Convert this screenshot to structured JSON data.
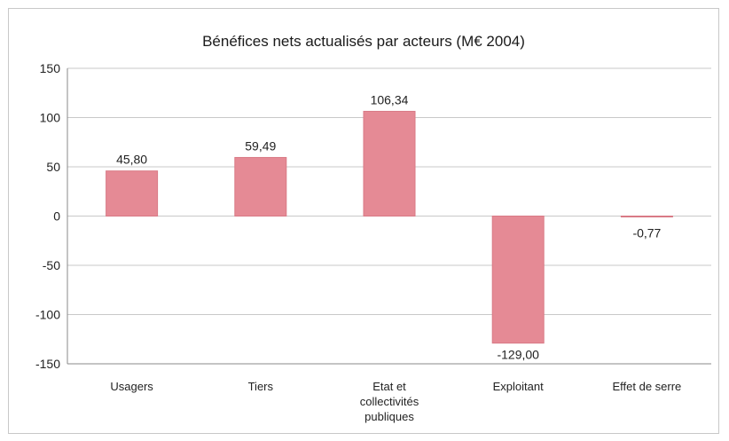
{
  "chart_data": {
    "type": "bar",
    "title": "Bénéfices nets actualisés par acteurs (M€ 2004)",
    "categories": [
      [
        "Usagers"
      ],
      [
        "Tiers"
      ],
      [
        "Etat et",
        "collectivités",
        "publiques"
      ],
      [
        "Exploitant"
      ],
      [
        "Effet de serre"
      ]
    ],
    "values": [
      45.8,
      59.49,
      106.34,
      -129.0,
      -0.77
    ],
    "value_labels": [
      "45,80",
      "59,49",
      "106,34",
      "-129,00",
      "-0,77"
    ],
    "ylim": [
      -150,
      150
    ],
    "yticks": [
      150,
      100,
      50,
      0,
      -50,
      -100,
      -150
    ],
    "grid": true,
    "legend": "none",
    "colors": {
      "bar": "#e58a95",
      "bar_edge": "#d97a86"
    }
  }
}
